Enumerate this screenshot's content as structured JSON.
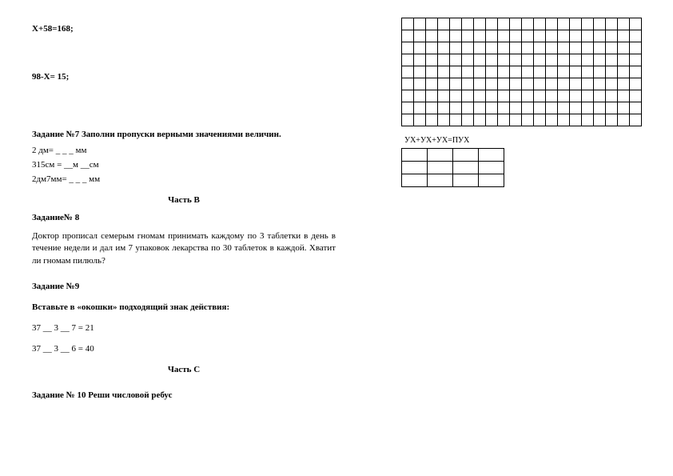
{
  "equations": {
    "eq1": "Х+58=168;",
    "eq2": "98-Х= 15;"
  },
  "task7": {
    "title": "Задание №7 Заполни пропуски верными значениями величин.",
    "l1": "2 дм=  _ _ _ мм",
    "l2": "315см = __м __см",
    "l3": "2дм7мм= _ _ _ мм"
  },
  "partB": "Часть В",
  "task8": {
    "title": "Задание№ 8",
    "body": "Доктор прописал семерым гномам принимать каждому по 3 таблетки в день в течение недели и дал им 7 упаковок лекарства по 30 таблеток в каждой. Хватит ли гномам пилюль?"
  },
  "task9": {
    "title": "Задание №9",
    "instr": "Вставьте в «окошки» подходящий знак действия:",
    "e1": "37  __ 3 __ 7 = 21",
    "e2": "37 __ 3 __ 6 = 40"
  },
  "partC": "Часть С",
  "task10": {
    "title": "Задание № 10 Реши числовой ребус"
  },
  "rebus": {
    "label": "УХ+УХ+УХ=ПУХ"
  },
  "bigGrid": {
    "rows": 9,
    "cols": 20
  },
  "smallGrid": {
    "rows": 3,
    "cols": 4
  }
}
